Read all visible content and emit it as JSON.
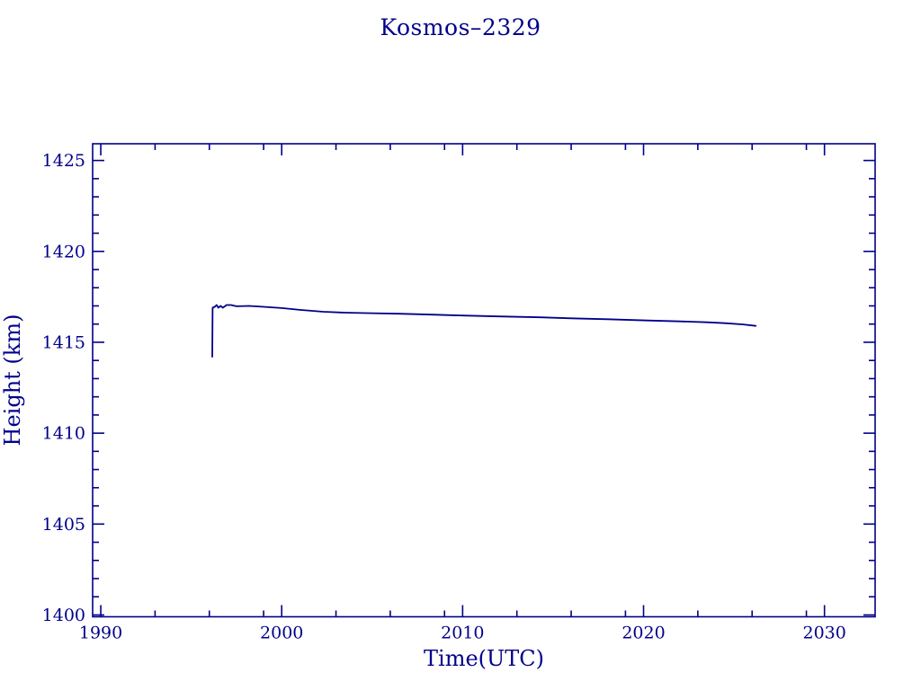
{
  "page": {
    "background_color": "#ffffff",
    "accent_color": "#00008B"
  },
  "chart_data": {
    "type": "line",
    "title": "Kosmos–2329",
    "xlabel": "Time(UTC)",
    "ylabel": "Height (km)",
    "grid": false,
    "legend_position": "none",
    "line_color": "#00008B",
    "axis_color": "#00008B",
    "xlim": [
      1989.55,
      2032.8
    ],
    "ylim": [
      1399.9,
      1425.92
    ],
    "x_major_ticks": [
      1990,
      2000,
      2010,
      2020,
      2030
    ],
    "x_major_labels": [
      "1990",
      "2000",
      "2010",
      "2020",
      "2030"
    ],
    "x_minor_ticks": [
      1993,
      1996,
      1999,
      2003,
      2006,
      2009,
      2013,
      2016,
      2019,
      2023,
      2026,
      2029
    ],
    "y_major_ticks": [
      1400,
      1405,
      1410,
      1415,
      1420,
      1425
    ],
    "y_major_labels": [
      "1400",
      "1405",
      "1410",
      "1415",
      "1420",
      "1425"
    ],
    "y_minor_ticks": [
      1401,
      1402,
      1403,
      1404,
      1406,
      1407,
      1408,
      1409,
      1411,
      1412,
      1413,
      1414,
      1416,
      1417,
      1418,
      1419,
      1421,
      1422,
      1423,
      1424
    ],
    "series": [
      {
        "name": "height-km",
        "points": [
          [
            1996.16,
            1414.2
          ],
          [
            1996.18,
            1416.9
          ],
          [
            1996.3,
            1416.95
          ],
          [
            1996.4,
            1417.05
          ],
          [
            1996.5,
            1416.9
          ],
          [
            1996.62,
            1417.0
          ],
          [
            1996.75,
            1416.9
          ],
          [
            1996.95,
            1417.05
          ],
          [
            1997.2,
            1417.05
          ],
          [
            1997.5,
            1416.98
          ],
          [
            1998.2,
            1417.0
          ],
          [
            1999.0,
            1416.95
          ],
          [
            2000.0,
            1416.88
          ],
          [
            2001.0,
            1416.78
          ],
          [
            2002.3,
            1416.68
          ],
          [
            2003.5,
            1416.63
          ],
          [
            2005.0,
            1416.6
          ],
          [
            2006.5,
            1416.57
          ],
          [
            2008.3,
            1416.52
          ],
          [
            2010.0,
            1416.47
          ],
          [
            2012.0,
            1416.42
          ],
          [
            2014.3,
            1416.37
          ],
          [
            2016.0,
            1416.32
          ],
          [
            2018.0,
            1416.27
          ],
          [
            2020.2,
            1416.2
          ],
          [
            2022.0,
            1416.15
          ],
          [
            2023.5,
            1416.1
          ],
          [
            2024.5,
            1416.05
          ],
          [
            2025.5,
            1415.98
          ],
          [
            2026.2,
            1415.9
          ]
        ]
      }
    ]
  }
}
